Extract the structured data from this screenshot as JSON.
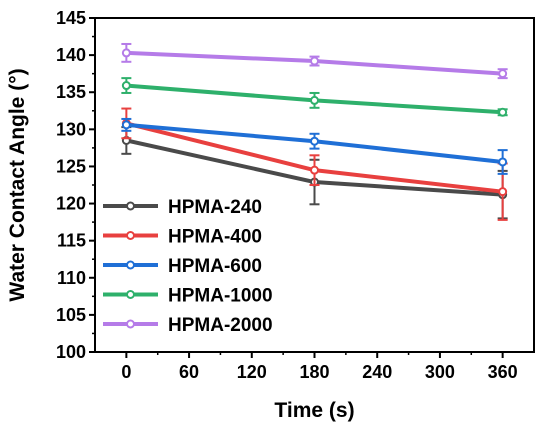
{
  "chart_data": {
    "type": "line",
    "xlabel": "Time (s)",
    "ylabel": "Water Contact Angle (°)",
    "xlim": [
      -30,
      390
    ],
    "ylim": [
      100,
      145
    ],
    "xticks": [
      0,
      60,
      120,
      180,
      240,
      300,
      360
    ],
    "xtick_labels": [
      "0",
      "60",
      "120",
      "180",
      "240",
      "300",
      "360"
    ],
    "yticks": [
      100,
      105,
      110,
      115,
      120,
      125,
      130,
      135,
      140,
      145
    ],
    "ytick_labels": [
      "100",
      "105",
      "110",
      "115",
      "120",
      "125",
      "130",
      "135",
      "140",
      "145"
    ],
    "x": [
      0,
      180,
      360
    ],
    "legend_position": "bottom-left",
    "series": [
      {
        "name": "HPMA-240",
        "color": "#4a4a4a",
        "values": [
          128.5,
          122.9,
          121.2
        ],
        "errors": [
          1.8,
          3.0,
          3.2
        ]
      },
      {
        "name": "HPMA-400",
        "color": "#e8403f",
        "values": [
          130.8,
          124.5,
          121.6
        ],
        "errors": [
          2.0,
          2.0,
          3.8
        ]
      },
      {
        "name": "HPMA-600",
        "color": "#1f6fd6",
        "values": [
          130.6,
          128.4,
          125.6
        ],
        "errors": [
          0.8,
          1.0,
          1.6
        ]
      },
      {
        "name": "HPMA-1000",
        "color": "#2eb06b",
        "values": [
          135.9,
          133.9,
          132.3
        ],
        "errors": [
          1.0,
          1.0,
          0.4
        ]
      },
      {
        "name": "HPMA-2000",
        "color": "#b57be8",
        "values": [
          140.3,
          139.2,
          137.5
        ],
        "errors": [
          1.2,
          0.6,
          0.6
        ]
      }
    ]
  }
}
